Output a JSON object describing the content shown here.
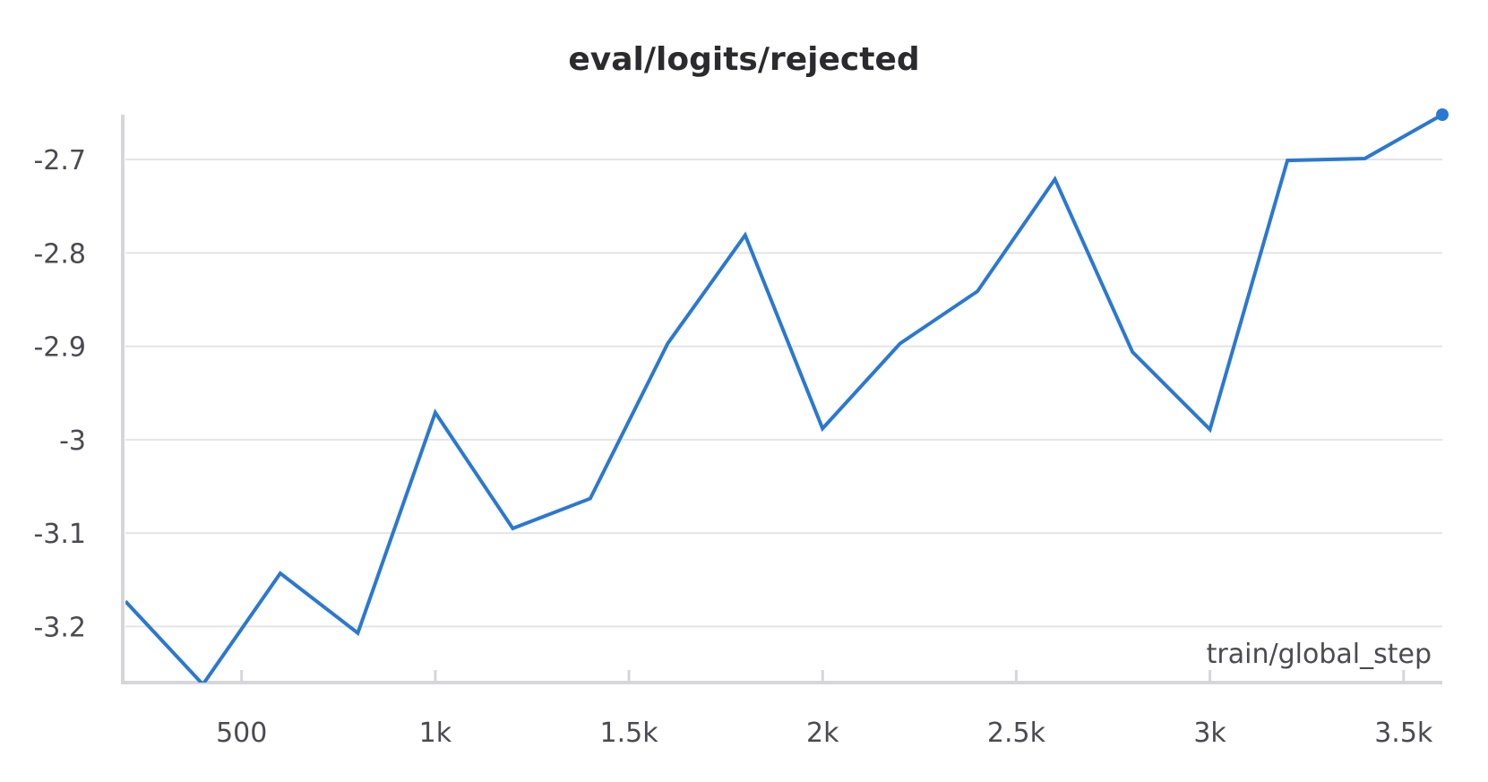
{
  "chart_data": {
    "type": "line",
    "title": "eval/logits/rejected",
    "xlabel": "train/global_step",
    "ylabel": "",
    "xlim": [
      200,
      3600
    ],
    "ylim": [
      -3.26,
      -2.652
    ],
    "x_ticks": [
      {
        "value": 500,
        "label": "500"
      },
      {
        "value": 1000,
        "label": "1k"
      },
      {
        "value": 1500,
        "label": "1.5k"
      },
      {
        "value": 2000,
        "label": "2k"
      },
      {
        "value": 2500,
        "label": "2.5k"
      },
      {
        "value": 3000,
        "label": "3k"
      },
      {
        "value": 3500,
        "label": "3.5k"
      }
    ],
    "y_ticks": [
      {
        "value": -2.7,
        "label": "-2.7"
      },
      {
        "value": -2.8,
        "label": "-2.8"
      },
      {
        "value": -2.9,
        "label": "-2.9"
      },
      {
        "value": -3.0,
        "label": "-3"
      },
      {
        "value": -3.1,
        "label": "-3.1"
      },
      {
        "value": -3.2,
        "label": "-3.2"
      }
    ],
    "grid": true,
    "legend": "none",
    "series": [
      {
        "color": "#2a78d2",
        "x": [
          200,
          400,
          600,
          800,
          1000,
          1200,
          1400,
          1600,
          1800,
          2000,
          2200,
          2400,
          2600,
          2800,
          3000,
          3200,
          3400,
          3600
        ],
        "y": [
          -3.173,
          -3.262,
          -3.143,
          -3.207,
          -2.971,
          -3.095,
          -3.063,
          -2.897,
          -2.781,
          -2.988,
          -2.897,
          -2.841,
          -2.721,
          -2.906,
          -2.989,
          -2.701,
          -2.699,
          -2.652
        ]
      }
    ]
  }
}
